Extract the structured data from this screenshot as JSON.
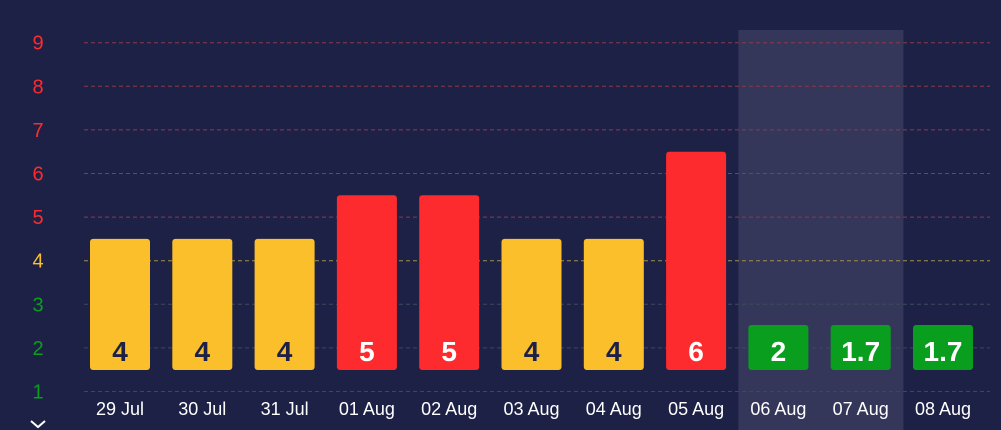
{
  "colors": {
    "background": "#1e2146",
    "gridline_red": "#8a3a4a",
    "gridline_yellow": "#a0904a",
    "gridline_green": "#3a4a5a",
    "highlight": "#34375a",
    "level_low": "#0a9e1e",
    "level_moderate": "#fbbf2c",
    "level_high": "#fd2b2d",
    "label_dark": "#1e2146",
    "label_light": "#ffffff"
  },
  "icons": {
    "scroll": "chevron-down-icon"
  },
  "chart_data": {
    "type": "bar",
    "categories": [
      "29 Jul",
      "30 Jul",
      "31 Jul",
      "01 Aug",
      "02 Aug",
      "03 Aug",
      "04 Aug",
      "05 Aug",
      "06 Aug",
      "07 Aug",
      "08 Aug"
    ],
    "values": [
      4,
      4,
      4,
      5,
      5,
      4,
      4,
      6,
      2,
      1.7,
      1.7
    ],
    "data_labels": [
      "4",
      "4",
      "4",
      "5",
      "5",
      "4",
      "4",
      "6",
      "2",
      "1.7",
      "1.7"
    ],
    "bar_colors": [
      "#fbbf2c",
      "#fbbf2c",
      "#fbbf2c",
      "#fd2b2d",
      "#fd2b2d",
      "#fbbf2c",
      "#fbbf2c",
      "#fd2b2d",
      "#0a9e1e",
      "#0a9e1e",
      "#0a9e1e"
    ],
    "label_colors": [
      "#1e2146",
      "#1e2146",
      "#1e2146",
      "#ffffff",
      "#ffffff",
      "#1e2146",
      "#1e2146",
      "#ffffff",
      "#ffffff",
      "#ffffff",
      "#ffffff"
    ],
    "highlighted_category": "06 Aug",
    "y_ticks": [
      {
        "value": 1,
        "label": "1",
        "color": "#0a9e1e"
      },
      {
        "value": 2,
        "label": "2",
        "color": "#0a9e1e"
      },
      {
        "value": 3,
        "label": "3",
        "color": "#0a9e1e"
      },
      {
        "value": 4,
        "label": "4",
        "color": "#fbbf2c"
      },
      {
        "value": 5,
        "label": "5",
        "color": "#fd2b2d"
      },
      {
        "value": 6,
        "label": "6",
        "color": "#fd2b2d"
      },
      {
        "value": 7,
        "label": "7",
        "color": "#fd2b2d"
      },
      {
        "value": 8,
        "label": "8",
        "color": "#fd2b2d"
      },
      {
        "value": 9,
        "label": "9",
        "color": "#fd2b2d"
      }
    ],
    "ylim": [
      1,
      9
    ],
    "title": "",
    "xlabel": "",
    "ylabel": "",
    "grid": true,
    "legend": "none"
  }
}
